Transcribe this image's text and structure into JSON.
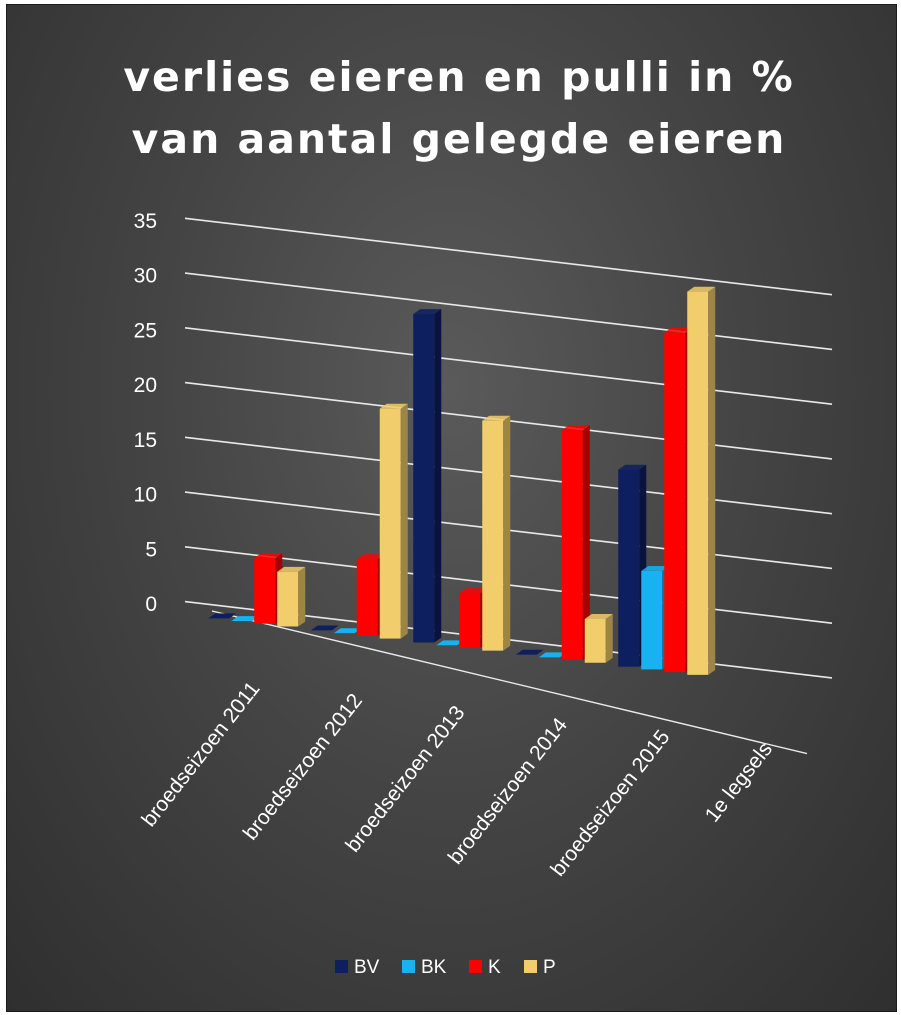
{
  "chart_data": {
    "type": "bar",
    "title_lines": [
      "verlies eieren en pulli in %",
      "van aantal gelegde eieren"
    ],
    "categories": [
      "broedseizoen 2011",
      "broedseizoen 2012",
      "broedseizoen 2013",
      "broedseizoen 2014",
      "broedseizoen 2015",
      "1e legsels"
    ],
    "series": [
      {
        "name": "BV",
        "color": "#0d1f5e",
        "values": [
          0,
          0,
          30,
          0,
          18,
          null
        ]
      },
      {
        "name": "BK",
        "color": "#17b2ef",
        "values": [
          0,
          0,
          0,
          0,
          9,
          null
        ]
      },
      {
        "name": "K",
        "color": "#ff0000",
        "values": [
          6,
          7,
          5,
          21,
          31,
          null
        ]
      },
      {
        "name": "P",
        "color": "#f2cd6b",
        "values": [
          5,
          21,
          21,
          4,
          35,
          null
        ]
      }
    ],
    "y_ticks": [
      "0",
      "5",
      "10",
      "15",
      "20",
      "25",
      "30",
      "35"
    ],
    "ylim": [
      0,
      35
    ],
    "grid": true,
    "legend_position": "bottom"
  }
}
